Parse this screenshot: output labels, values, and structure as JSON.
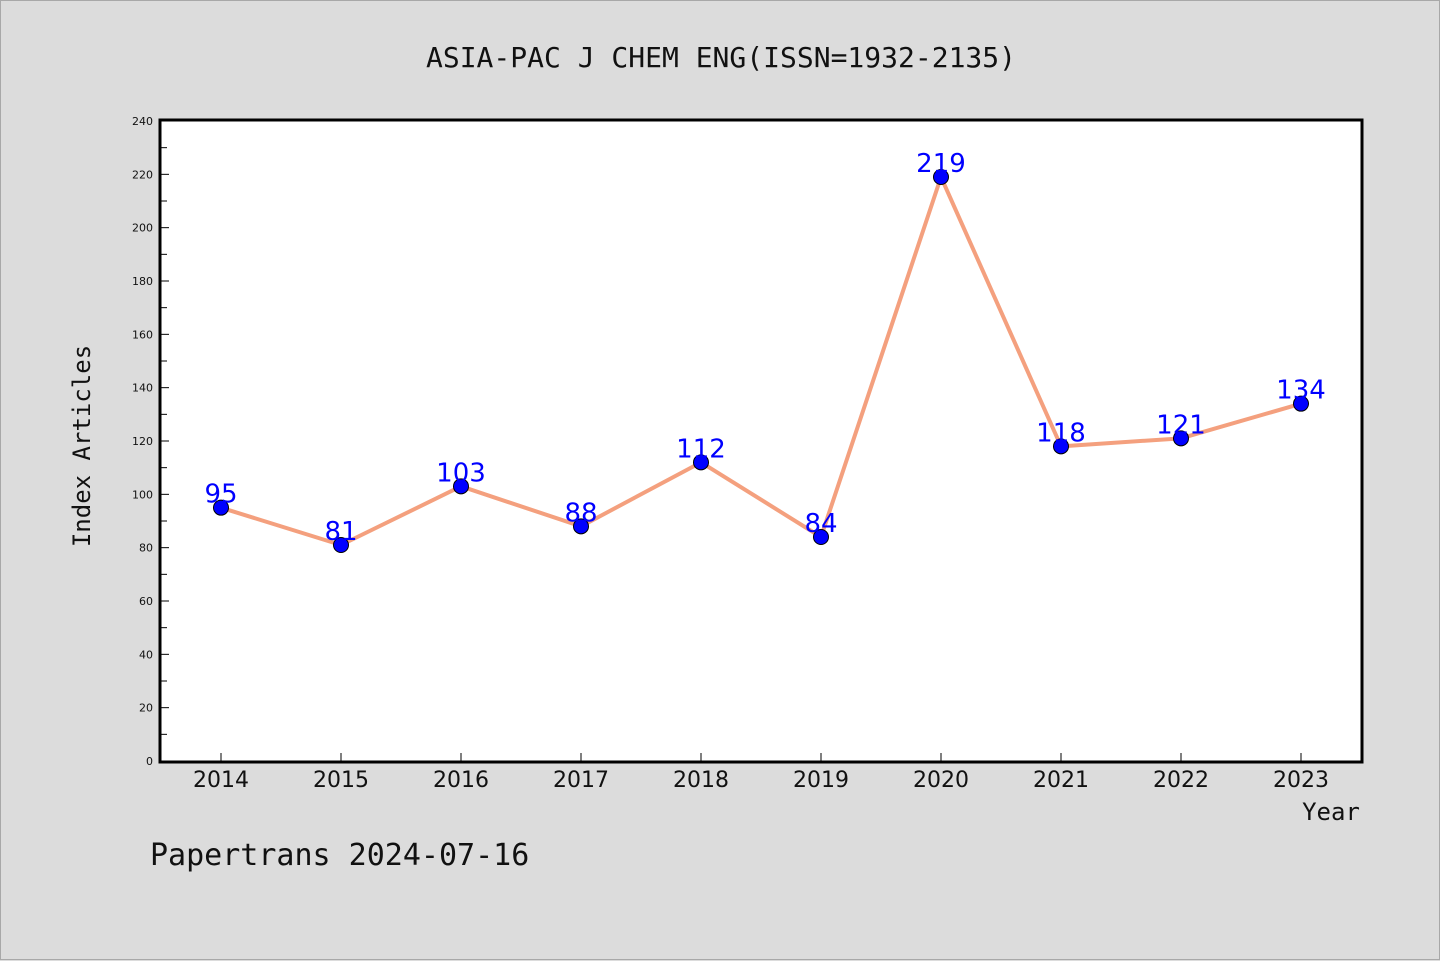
{
  "chart_data": {
    "type": "line",
    "title": "ASIA-PAC J CHEM ENG(ISSN=1932-2135)",
    "xlabel": "Year",
    "ylabel": "Index Articles",
    "categories": [
      "2014",
      "2015",
      "2016",
      "2017",
      "2018",
      "2019",
      "2020",
      "2021",
      "2022",
      "2023"
    ],
    "values": [
      95,
      81,
      103,
      88,
      112,
      84,
      219,
      118,
      121,
      134
    ],
    "ylim": [
      0,
      240
    ],
    "yticks": [
      0,
      20,
      40,
      60,
      80,
      100,
      120,
      140,
      160,
      180,
      200,
      220,
      240
    ],
    "grid": false,
    "line_color": "#f4a07e",
    "marker_color": "#0000ff",
    "label_color": "#0000ff"
  },
  "footer": "Papertrans 2024-07-16"
}
